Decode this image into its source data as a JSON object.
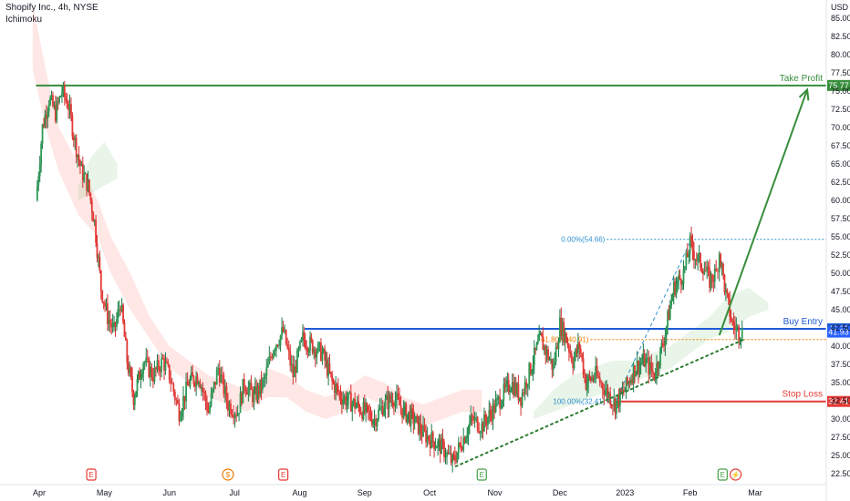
{
  "header": {
    "symbol_line": "Shopify Inc., 4h, NYSE",
    "indicator": "Ichimoku"
  },
  "chart_data": {
    "type": "candlestick",
    "currency": "USD",
    "ylim": [
      22.5,
      87.5
    ],
    "y_ticks": [
      22.5,
      25,
      27.5,
      30,
      32.5,
      35,
      37.5,
      40,
      42.5,
      45,
      47.5,
      50,
      52.5,
      55,
      57.5,
      60,
      62.5,
      65,
      67.5,
      70,
      72.5,
      75,
      77.5,
      80,
      82.5,
      85
    ],
    "y_tick_labels": [
      "22.50",
      "25.00",
      "27.50",
      "30.00",
      "32.50",
      "35.00",
      "37.50",
      "40.00",
      "42.50",
      "45.00",
      "47.50",
      "50.00",
      "52.50",
      "55.00",
      "57.50",
      "60.00",
      "62.50",
      "65.00",
      "67.50",
      "70.00",
      "72.50",
      "75.00",
      "77.50",
      "80.00",
      "82.50",
      "85.00"
    ],
    "x_labels": [
      {
        "label": "Apr",
        "pos": 0.0
      },
      {
        "label": "May",
        "pos": 1.0
      },
      {
        "label": "Jun",
        "pos": 2.0
      },
      {
        "label": "Jul",
        "pos": 3.0
      },
      {
        "label": "Aug",
        "pos": 4.0
      },
      {
        "label": "Sep",
        "pos": 5.0
      },
      {
        "label": "Oct",
        "pos": 6.0
      },
      {
        "label": "Nov",
        "pos": 7.0
      },
      {
        "label": "Dec",
        "pos": 8.0
      },
      {
        "label": "2023",
        "pos": 9.0
      },
      {
        "label": "Feb",
        "pos": 10.0
      },
      {
        "label": "Mar",
        "pos": 11.0
      }
    ],
    "price_path": [
      [
        -0.05,
        60
      ],
      [
        0.05,
        70
      ],
      [
        0.15,
        74
      ],
      [
        0.25,
        72
      ],
      [
        0.35,
        75
      ],
      [
        0.45,
        73
      ],
      [
        0.55,
        68
      ],
      [
        0.65,
        64
      ],
      [
        0.75,
        62
      ],
      [
        0.85,
        57
      ],
      [
        0.95,
        48
      ],
      [
        1.05,
        44
      ],
      [
        1.15,
        42
      ],
      [
        1.25,
        46
      ],
      [
        1.35,
        38
      ],
      [
        1.45,
        33
      ],
      [
        1.6,
        38
      ],
      [
        1.75,
        36
      ],
      [
        1.9,
        38
      ],
      [
        2.0,
        36
      ],
      [
        2.15,
        31
      ],
      [
        2.3,
        35
      ],
      [
        2.45,
        36
      ],
      [
        2.6,
        31
      ],
      [
        2.75,
        37
      ],
      [
        2.9,
        32
      ],
      [
        3.05,
        31
      ],
      [
        3.15,
        35
      ],
      [
        3.3,
        33
      ],
      [
        3.45,
        35
      ],
      [
        3.6,
        40
      ],
      [
        3.75,
        42
      ],
      [
        3.9,
        36
      ],
      [
        4.05,
        41
      ],
      [
        4.2,
        40
      ],
      [
        4.35,
        39
      ],
      [
        4.5,
        35
      ],
      [
        4.65,
        33
      ],
      [
        4.85,
        32
      ],
      [
        5.0,
        31
      ],
      [
        5.15,
        30
      ],
      [
        5.3,
        32
      ],
      [
        5.45,
        33
      ],
      [
        5.6,
        31
      ],
      [
        5.75,
        30
      ],
      [
        5.9,
        28
      ],
      [
        6.05,
        27
      ],
      [
        6.2,
        26
      ],
      [
        6.35,
        24
      ],
      [
        6.5,
        27
      ],
      [
        6.65,
        30
      ],
      [
        6.8,
        29
      ],
      [
        6.95,
        31
      ],
      [
        7.1,
        33
      ],
      [
        7.25,
        35
      ],
      [
        7.4,
        33
      ],
      [
        7.55,
        37
      ],
      [
        7.7,
        41
      ],
      [
        7.8,
        39
      ],
      [
        7.9,
        37
      ],
      [
        8.0,
        43
      ],
      [
        8.1,
        41
      ],
      [
        8.2,
        38
      ],
      [
        8.3,
        40
      ],
      [
        8.4,
        35
      ],
      [
        8.55,
        36
      ],
      [
        8.7,
        34
      ],
      [
        8.85,
        32
      ],
      [
        9.0,
        34
      ],
      [
        9.15,
        37
      ],
      [
        9.3,
        38
      ],
      [
        9.45,
        36
      ],
      [
        9.6,
        41
      ],
      [
        9.75,
        48
      ],
      [
        9.9,
        50
      ],
      [
        10.0,
        54
      ],
      [
        10.1,
        52
      ],
      [
        10.2,
        51
      ],
      [
        10.3,
        49
      ],
      [
        10.4,
        50
      ],
      [
        10.45,
        53
      ],
      [
        10.55,
        47
      ],
      [
        10.65,
        43
      ],
      [
        10.75,
        42
      ],
      [
        10.8,
        42
      ]
    ],
    "ichimoku_cloud": [
      {
        "color": "red",
        "points": [
          [
            -0.1,
            87
          ],
          [
            0.1,
            78
          ],
          [
            0.3,
            70
          ],
          [
            0.6,
            65
          ],
          [
            0.9,
            60
          ],
          [
            1.1,
            55
          ],
          [
            1.4,
            50
          ],
          [
            1.7,
            44
          ],
          [
            2.0,
            40
          ],
          [
            2.3,
            38
          ],
          [
            2.6,
            36
          ],
          [
            2.9,
            35
          ],
          [
            3.2,
            34
          ],
          [
            3.5,
            37
          ],
          [
            3.8,
            36
          ],
          [
            4.1,
            34
          ],
          [
            4.4,
            33
          ],
          [
            4.7,
            34
          ],
          [
            5.0,
            36
          ],
          [
            5.3,
            35
          ],
          [
            5.6,
            33
          ],
          [
            5.9,
            32
          ],
          [
            6.2,
            33
          ],
          [
            6.5,
            34
          ],
          [
            6.8,
            34
          ]
        ],
        "lower": [
          [
            -0.1,
            78
          ],
          [
            0.1,
            70
          ],
          [
            0.3,
            64
          ],
          [
            0.6,
            58
          ],
          [
            0.9,
            55
          ],
          [
            1.1,
            50
          ],
          [
            1.4,
            45
          ],
          [
            1.7,
            41
          ],
          [
            2.0,
            37
          ],
          [
            2.3,
            35
          ],
          [
            2.6,
            33
          ],
          [
            2.9,
            32
          ],
          [
            3.2,
            31
          ],
          [
            3.5,
            33
          ],
          [
            3.8,
            33
          ],
          [
            4.1,
            31
          ],
          [
            4.4,
            30
          ],
          [
            4.7,
            31
          ],
          [
            5.0,
            33
          ],
          [
            5.3,
            32
          ],
          [
            5.6,
            30
          ],
          [
            5.9,
            29
          ],
          [
            6.2,
            30
          ],
          [
            6.5,
            31
          ],
          [
            6.8,
            31
          ]
        ]
      },
      {
        "color": "green",
        "points": [
          [
            0.6,
            62
          ],
          [
            0.8,
            66
          ],
          [
            1.0,
            68
          ],
          [
            1.2,
            65
          ]
        ],
        "lower": [
          [
            0.6,
            60
          ],
          [
            0.8,
            61
          ],
          [
            1.0,
            62
          ],
          [
            1.2,
            63
          ]
        ]
      },
      {
        "color": "green",
        "points": [
          [
            7.6,
            31
          ],
          [
            7.9,
            34
          ],
          [
            8.2,
            36
          ],
          [
            8.5,
            37
          ],
          [
            8.8,
            38
          ],
          [
            9.1,
            38
          ],
          [
            9.4,
            39
          ],
          [
            9.7,
            40
          ],
          [
            10.0,
            42
          ],
          [
            10.3,
            44
          ],
          [
            10.6,
            47
          ],
          [
            10.9,
            48
          ],
          [
            11.2,
            46
          ]
        ],
        "lower": [
          [
            7.6,
            30
          ],
          [
            7.9,
            31
          ],
          [
            8.2,
            32
          ],
          [
            8.5,
            33
          ],
          [
            8.8,
            34
          ],
          [
            9.1,
            35
          ],
          [
            9.4,
            36
          ],
          [
            9.7,
            37
          ],
          [
            10.0,
            39
          ],
          [
            10.3,
            41
          ],
          [
            10.6,
            42
          ],
          [
            10.9,
            44
          ],
          [
            11.2,
            45
          ]
        ]
      }
    ],
    "levels": [
      {
        "name": "Take Profit",
        "value": 75.77,
        "label": "75.77",
        "color": "#388e3c"
      },
      {
        "name": "Buy Entry",
        "value": 42.38,
        "label": "42.38",
        "color": "#1e5bd6"
      },
      {
        "name": "Stop Loss",
        "value": 32.41,
        "label": "32.41",
        "color": "#e53935"
      }
    ],
    "current_price": {
      "value": 41.93,
      "label": "41.93",
      "color": "#2962ff"
    },
    "fibonacci": [
      {
        "label": "0.00%(54.66)",
        "value": 54.66,
        "color": "#2f8fcf"
      },
      {
        "label": "61.80%(40.91)",
        "value": 40.91,
        "color": "#f57c00"
      },
      {
        "label": "100.00%(32.41)",
        "value": 32.41,
        "color": "#2f8fcf"
      }
    ],
    "trendline": {
      "from": [
        6.4,
        23.5
      ],
      "to": [
        10.85,
        41.0
      ],
      "color": "#2e7d32"
    },
    "projection_arrow": {
      "from": [
        10.45,
        41.5
      ],
      "to": [
        11.8,
        75.2
      ],
      "color": "#388e3c"
    },
    "event_markers": [
      {
        "label": "E",
        "pos": 0.8,
        "color": "#e53935"
      },
      {
        "label": "$",
        "pos": 2.9,
        "color": "#f57c00"
      },
      {
        "label": "E",
        "pos": 3.75,
        "color": "#e53935"
      },
      {
        "label": "E",
        "pos": 6.8,
        "color": "#43a047"
      },
      {
        "label": "E",
        "pos": 10.5,
        "color": "#43a047"
      },
      {
        "label": "⚡",
        "pos": 10.7,
        "color": "#e53935"
      }
    ]
  }
}
